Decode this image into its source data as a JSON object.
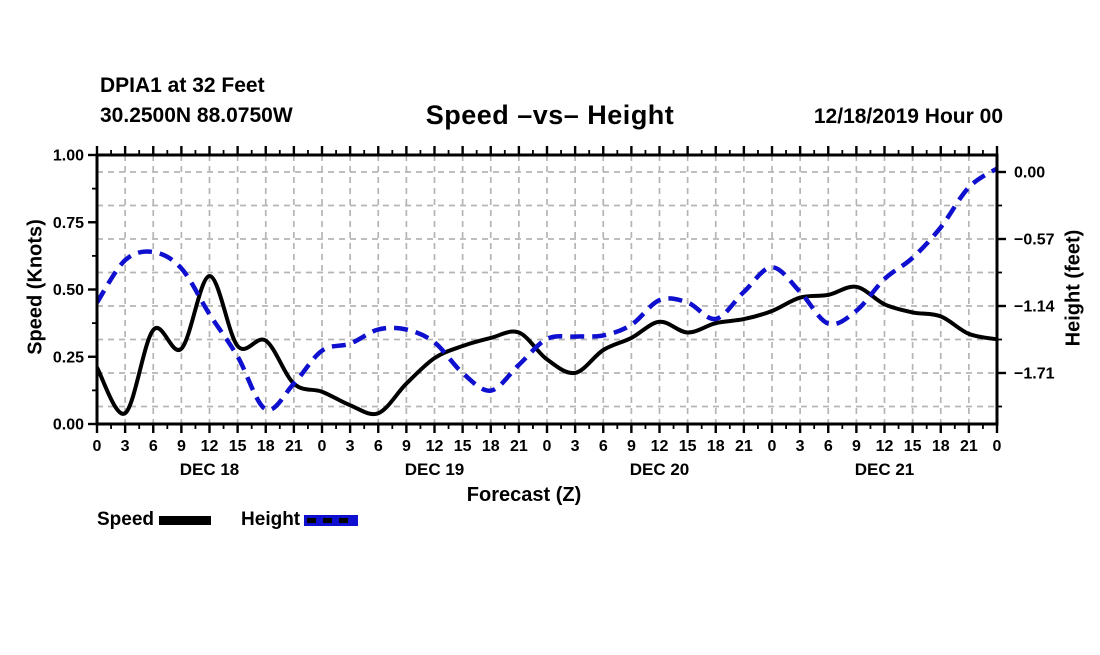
{
  "header": {
    "station": "DPIA1 at 32 Feet",
    "coords": "30.2500N 88.0750W",
    "datetime": "12/18/2019 Hour 00"
  },
  "legend": {
    "items": [
      {
        "label": "Speed",
        "color": "#000000",
        "style": "solid"
      },
      {
        "label": "Height",
        "color": "#0f0fd0",
        "style": "dashed"
      }
    ]
  },
  "colors": {
    "speed_line": "#000000",
    "height_line": "#0f0fd0",
    "grid": "#b5b5b5",
    "text": "#000000"
  },
  "chart_data": {
    "type": "line",
    "title": "Speed –vs– Height",
    "xlabel": "Forecast (Z)",
    "xlim": [
      0,
      96
    ],
    "x_step_hours": 3,
    "x_minor_step_hours": 1.5,
    "hour_tick_labels": [
      "0",
      "3",
      "6",
      "9",
      "12",
      "15",
      "18",
      "21",
      "0",
      "3",
      "6",
      "9",
      "12",
      "15",
      "18",
      "21",
      "0",
      "3",
      "6",
      "9",
      "12",
      "15",
      "18",
      "21",
      "0",
      "3",
      "6",
      "9",
      "12",
      "15",
      "18",
      "21",
      "0"
    ],
    "day_labels": [
      {
        "label": "DEC 18",
        "hour": 12
      },
      {
        "label": "DEC 19",
        "hour": 36
      },
      {
        "label": "DEC 20",
        "hour": 60
      },
      {
        "label": "DEC 21",
        "hour": 84
      }
    ],
    "left_axis": {
      "label": "Speed (Knots)",
      "ylim": [
        0,
        1
      ],
      "ticks": [
        {
          "label": "1.00",
          "value": 1.0
        },
        {
          "label": "0.75",
          "value": 0.75
        },
        {
          "label": "0.50",
          "value": 0.5
        },
        {
          "label": "0.25",
          "value": 0.25
        },
        {
          "label": "0.00",
          "value": 0.0
        }
      ],
      "minor_ticks": [
        0.125,
        0.375,
        0.625,
        0.875
      ]
    },
    "right_axis": {
      "label": "Height (feet)",
      "ylim": [
        -2.144,
        0.145
      ],
      "ticks": [
        {
          "label": "0.00",
          "value": 0.0
        },
        {
          "label": "−0.57",
          "value": -0.57
        },
        {
          "label": "−1.14",
          "value": -1.14
        },
        {
          "label": "−1.71",
          "value": -1.71
        }
      ],
      "minor_ticks": [
        -0.285,
        -0.855,
        -1.425,
        -1.995
      ],
      "grid_values": [
        0,
        -0.285,
        -0.57,
        -0.855,
        -1.14,
        -1.425,
        -1.71,
        -1.995
      ]
    },
    "series": [
      {
        "name": "Speed",
        "axis": "left",
        "color": "#000000",
        "style": "solid",
        "values": [
          0.21,
          0.04,
          0.35,
          0.28,
          0.55,
          0.29,
          0.31,
          0.15,
          0.12,
          0.07,
          0.04,
          0.15,
          0.245,
          0.29,
          0.32,
          0.34,
          0.24,
          0.19,
          0.275,
          0.32,
          0.38,
          0.34,
          0.375,
          0.39,
          0.42,
          0.47,
          0.48,
          0.51,
          0.445,
          0.415,
          0.4,
          0.335,
          0.315
        ]
      },
      {
        "name": "Height",
        "axis": "right",
        "color": "#0f0fd0",
        "style": "dashed",
        "values": [
          -1.11,
          -0.75,
          -0.68,
          -0.82,
          -1.21,
          -1.57,
          -2.02,
          -1.8,
          -1.52,
          -1.46,
          -1.34,
          -1.34,
          -1.45,
          -1.71,
          -1.86,
          -1.64,
          -1.42,
          -1.4,
          -1.39,
          -1.3,
          -1.09,
          -1.11,
          -1.25,
          -1.02,
          -0.81,
          -1.02,
          -1.29,
          -1.18,
          -0.91,
          -0.73,
          -0.47,
          -0.13,
          0.03
        ]
      }
    ],
    "legend_position": "bottom-left",
    "grid": true
  }
}
